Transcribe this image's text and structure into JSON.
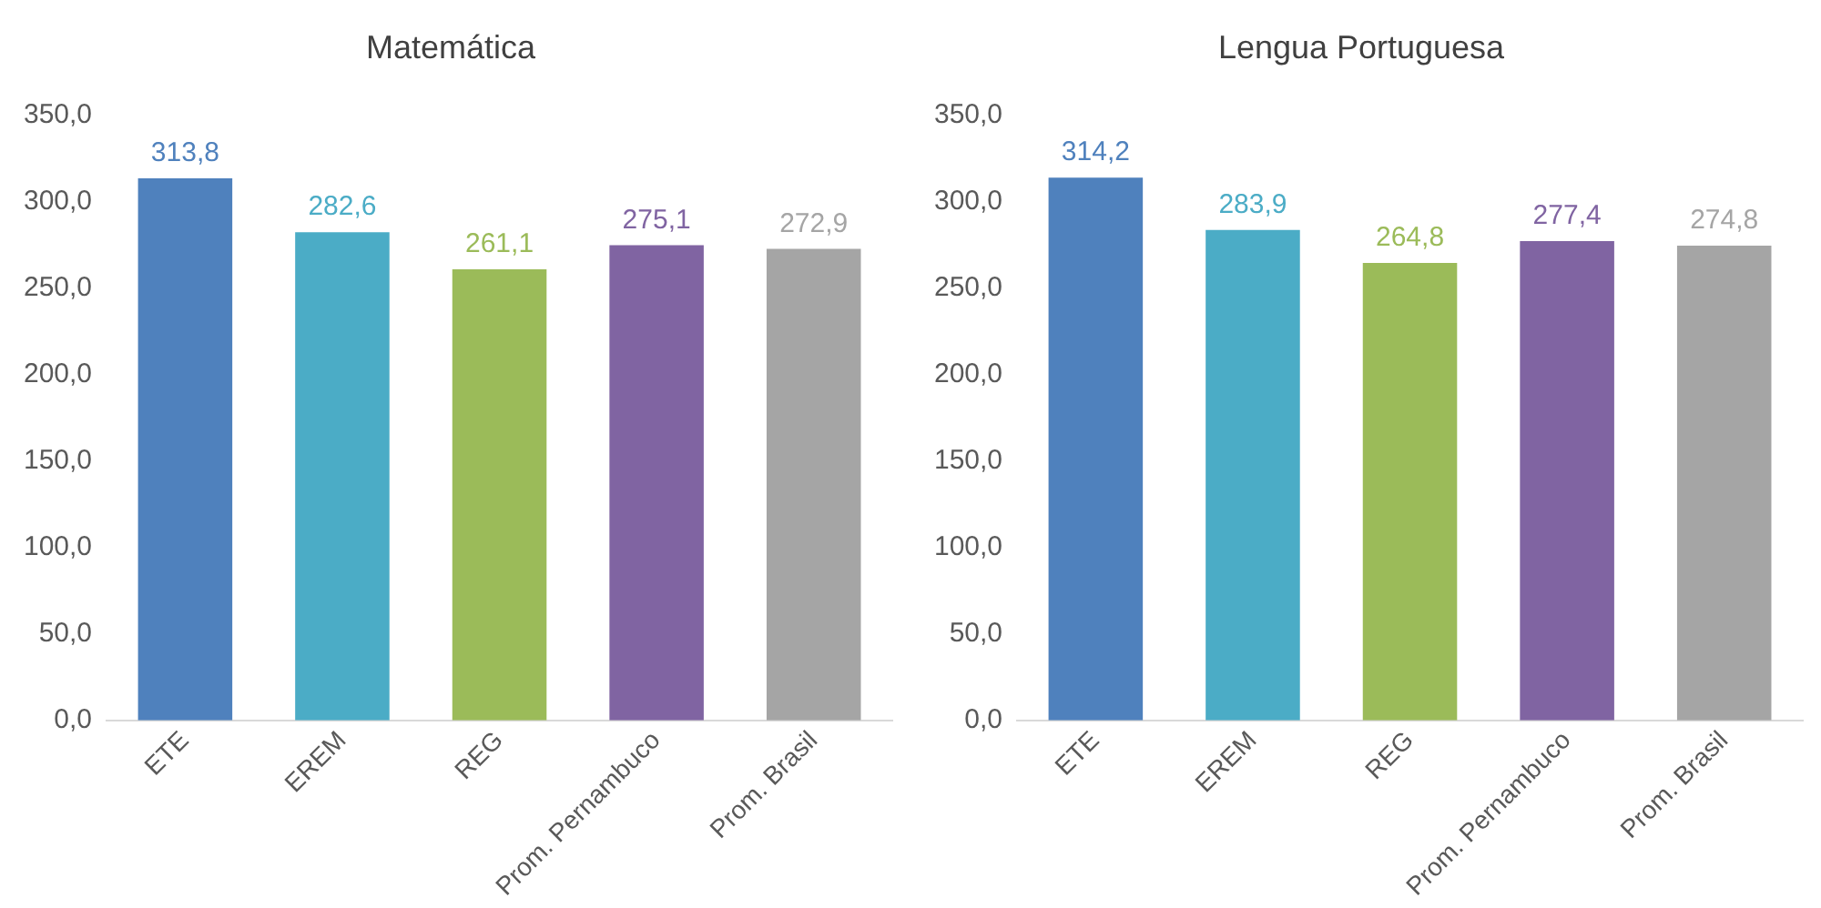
{
  "chart_data": [
    {
      "type": "bar",
      "title": "Matemática",
      "categories": [
        "ETE",
        "EREM",
        "REG",
        "Prom. Pernambuco",
        "Prom. Brasil"
      ],
      "values": [
        313.8,
        282.6,
        261.1,
        275.1,
        272.9
      ],
      "colors": [
        "#4f81bd",
        "#4bacc6",
        "#9bbb59",
        "#8064a2",
        "#a5a5a5"
      ],
      "value_labels": [
        "313,8",
        "282,6",
        "261,1",
        "275,1",
        "272,9"
      ],
      "ylim": [
        0,
        350
      ],
      "yticks": [
        {
          "value": 0,
          "label": "0,0"
        },
        {
          "value": 50,
          "label": "50,0"
        },
        {
          "value": 100,
          "label": "100,0"
        },
        {
          "value": 150,
          "label": "150,0"
        },
        {
          "value": 200,
          "label": "200,0"
        },
        {
          "value": 250,
          "label": "250,0"
        },
        {
          "value": 300,
          "label": "300,0"
        },
        {
          "value": 350,
          "label": "350,0"
        }
      ],
      "grid": false,
      "legend": false
    },
    {
      "type": "bar",
      "title": "Lengua Portuguesa",
      "categories": [
        "ETE",
        "EREM",
        "REG",
        "Prom. Pernambuco",
        "Prom. Brasil"
      ],
      "values": [
        314.2,
        283.9,
        264.8,
        277.4,
        274.8
      ],
      "colors": [
        "#4f81bd",
        "#4bacc6",
        "#9bbb59",
        "#8064a2",
        "#a5a5a5"
      ],
      "value_labels": [
        "314,2",
        "283,9",
        "264,8",
        "277,4",
        "274,8"
      ],
      "ylim": [
        0,
        350
      ],
      "yticks": [
        {
          "value": 0,
          "label": "0,0"
        },
        {
          "value": 50,
          "label": "50,0"
        },
        {
          "value": 100,
          "label": "100,0"
        },
        {
          "value": 150,
          "label": "150,0"
        },
        {
          "value": 200,
          "label": "200,0"
        },
        {
          "value": 250,
          "label": "250,0"
        },
        {
          "value": 300,
          "label": "300,0"
        },
        {
          "value": 350,
          "label": "350,0"
        }
      ],
      "grid": false,
      "legend": false
    }
  ]
}
